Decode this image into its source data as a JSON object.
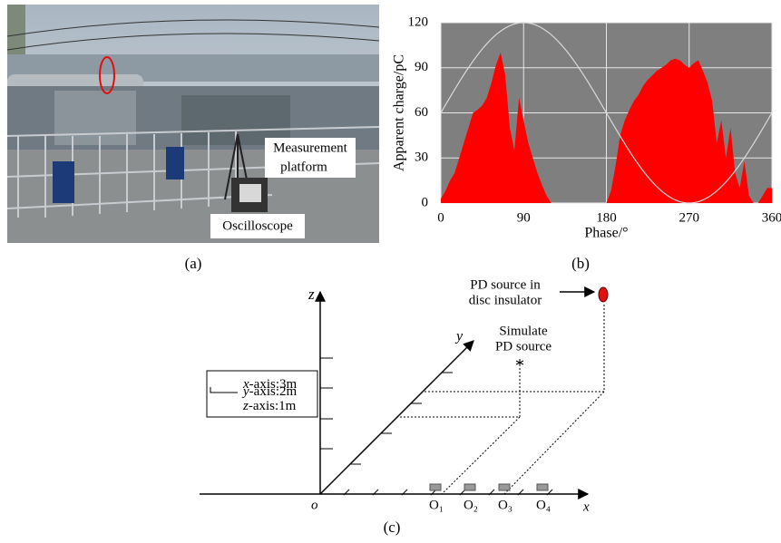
{
  "panel_a": {
    "label": "(a)",
    "platform": [
      "Measurement",
      "platform"
    ],
    "oscilloscope": "Oscilloscope"
  },
  "panel_b": {
    "label": "(b)"
  },
  "chart_data": {
    "type": "area",
    "x_label": "Phase/°",
    "y_label": "Apparent charge/pC",
    "x": [
      0,
      5,
      10,
      15,
      20,
      25,
      30,
      35,
      40,
      45,
      50,
      55,
      60,
      65,
      70,
      75,
      80,
      85,
      90,
      95,
      100,
      105,
      110,
      115,
      120,
      125,
      130,
      135,
      140,
      145,
      150,
      155,
      160,
      165,
      170,
      175,
      180,
      185,
      190,
      195,
      200,
      205,
      210,
      215,
      220,
      225,
      230,
      235,
      240,
      245,
      250,
      255,
      260,
      265,
      270,
      275,
      280,
      285,
      290,
      295,
      300,
      305,
      310,
      315,
      320,
      325,
      330,
      335,
      340,
      345,
      350,
      355,
      360
    ],
    "values": [
      3,
      8,
      15,
      20,
      30,
      40,
      50,
      60,
      62,
      65,
      70,
      80,
      92,
      100,
      85,
      50,
      35,
      70,
      55,
      40,
      30,
      20,
      12,
      5,
      0,
      0,
      0,
      0,
      0,
      0,
      0,
      0,
      0,
      0,
      0,
      0,
      0,
      8,
      25,
      45,
      55,
      62,
      68,
      72,
      78,
      82,
      85,
      88,
      90,
      92,
      95,
      96,
      95,
      92,
      90,
      93,
      95,
      88,
      80,
      68,
      40,
      55,
      30,
      50,
      20,
      10,
      28,
      5,
      0,
      0,
      5,
      10,
      10
    ],
    "color": "#ff0000",
    "background": "#7f7f7f",
    "grid": true,
    "xlim": [
      0,
      360
    ],
    "xticks": [
      0,
      90,
      180,
      270,
      360
    ],
    "ylim": [
      0,
      120
    ],
    "yticks": [
      0,
      30,
      60,
      90,
      120
    ]
  },
  "panel_c": {
    "label": "(c)",
    "z": "z",
    "y": "y",
    "x": "x",
    "origin": "o",
    "legend": [
      {
        "axis": "x",
        "text": "-axis:3m"
      },
      {
        "axis": "y",
        "text": "-axis:2m"
      },
      {
        "axis": "z",
        "text": "-axis:1m"
      }
    ],
    "simulate": [
      "Simulate",
      "PD source"
    ],
    "pd_source": [
      "PD source in",
      "disc insulator"
    ],
    "sensors": [
      "O₁",
      "O₂",
      "O₃",
      "O₄"
    ]
  }
}
